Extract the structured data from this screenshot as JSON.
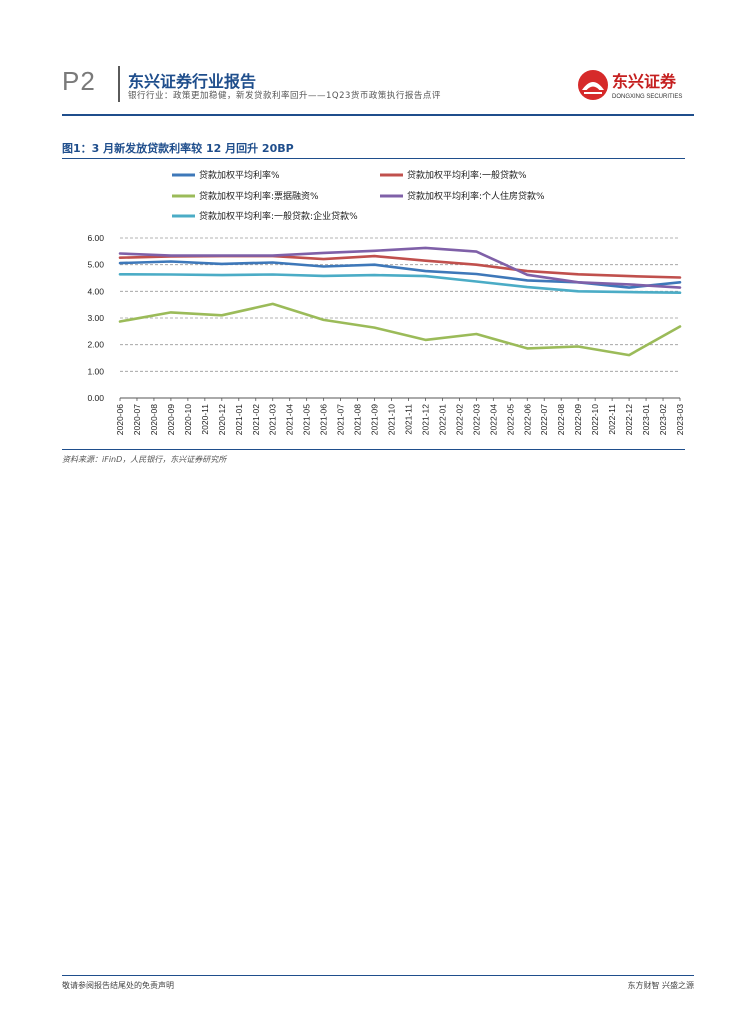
{
  "header": {
    "page_num": "P2",
    "report_title": "东兴证券行业报告",
    "report_subtitle": "银行行业：政策更加稳健，新发贷款利率回升——1Q23货币政策执行报告点评",
    "logo_text": "东兴证券",
    "logo_subtext": "DONGXING SECURITIES"
  },
  "figure": {
    "title": "图1：3 月新发放贷款利率较 12 月回升 20BP",
    "source": "资料来源：iFinD，人民银行，东兴证券研究所"
  },
  "footer": {
    "left": "敬请参阅报告结尾处的免责声明",
    "right": "东方财智 兴盛之源"
  },
  "chart_data": {
    "type": "line",
    "title": "3 月新发放贷款利率较 12 月回升 20BP",
    "xlabel": "",
    "ylabel": "",
    "ylim": [
      0,
      6
    ],
    "yticks": [
      "0.00",
      "1.00",
      "2.00",
      "3.00",
      "4.00",
      "5.00",
      "6.00"
    ],
    "grid": true,
    "legend_position": "top",
    "categories": [
      "2020-06",
      "2020-07",
      "2020-08",
      "2020-09",
      "2020-10",
      "2020-11",
      "2020-12",
      "2021-01",
      "2021-02",
      "2021-03",
      "2021-04",
      "2021-05",
      "2021-06",
      "2021-07",
      "2021-08",
      "2021-09",
      "2021-10",
      "2021-11",
      "2021-12",
      "2022-01",
      "2022-02",
      "2022-03",
      "2022-04",
      "2022-05",
      "2022-06",
      "2022-07",
      "2022-08",
      "2022-09",
      "2022-10",
      "2022-11",
      "2022-12",
      "2023-01",
      "2023-02",
      "2023-03"
    ],
    "series": [
      {
        "name": "贷款加权平均利率%",
        "color": "#3e78b9",
        "points": [
          [
            "2020-06",
            5.06
          ],
          [
            "2020-09",
            5.12
          ],
          [
            "2020-12",
            5.03
          ],
          [
            "2021-03",
            5.08
          ],
          [
            "2021-06",
            4.93
          ],
          [
            "2021-09",
            5.0
          ],
          [
            "2021-12",
            4.76
          ],
          [
            "2022-03",
            4.65
          ],
          [
            "2022-06",
            4.41
          ],
          [
            "2022-09",
            4.34
          ],
          [
            "2022-12",
            4.14
          ],
          [
            "2023-03",
            4.34
          ]
        ]
      },
      {
        "name": "贷款加权平均利率:一般贷款%",
        "color": "#c0504d",
        "points": [
          [
            "2020-06",
            5.26
          ],
          [
            "2020-09",
            5.31
          ],
          [
            "2020-12",
            5.32
          ],
          [
            "2021-03",
            5.32
          ],
          [
            "2021-06",
            5.21
          ],
          [
            "2021-09",
            5.32
          ],
          [
            "2021-12",
            5.15
          ],
          [
            "2022-03",
            5.0
          ],
          [
            "2022-06",
            4.76
          ],
          [
            "2022-09",
            4.64
          ],
          [
            "2022-12",
            4.57
          ],
          [
            "2023-03",
            4.52
          ]
        ]
      },
      {
        "name": "贷款加权平均利率:票据融资%",
        "color": "#9bbb59",
        "points": [
          [
            "2020-06",
            2.87
          ],
          [
            "2020-09",
            3.21
          ],
          [
            "2020-12",
            3.1
          ],
          [
            "2021-03",
            3.53
          ],
          [
            "2021-06",
            2.93
          ],
          [
            "2021-09",
            2.64
          ],
          [
            "2021-12",
            2.18
          ],
          [
            "2022-03",
            2.4
          ],
          [
            "2022-06",
            1.86
          ],
          [
            "2022-09",
            1.93
          ],
          [
            "2022-12",
            1.61
          ],
          [
            "2023-03",
            2.68
          ]
        ]
      },
      {
        "name": "贷款加权平均利率:个人住房贷款%",
        "color": "#7f60a8",
        "points": [
          [
            "2020-06",
            5.42
          ],
          [
            "2020-09",
            5.34
          ],
          [
            "2020-12",
            5.34
          ],
          [
            "2021-03",
            5.34
          ],
          [
            "2021-06",
            5.44
          ],
          [
            "2021-09",
            5.52
          ],
          [
            "2021-12",
            5.63
          ],
          [
            "2022-03",
            5.49
          ],
          [
            "2022-06",
            4.62
          ],
          [
            "2022-09",
            4.34
          ],
          [
            "2022-12",
            4.26
          ],
          [
            "2023-03",
            4.14
          ]
        ]
      },
      {
        "name": "贷款加权平均利率:一般贷款:企业贷款%",
        "color": "#4bacc6",
        "points": [
          [
            "2020-06",
            4.64
          ],
          [
            "2020-09",
            4.63
          ],
          [
            "2020-12",
            4.61
          ],
          [
            "2021-03",
            4.63
          ],
          [
            "2021-06",
            4.58
          ],
          [
            "2021-09",
            4.61
          ],
          [
            "2021-12",
            4.57
          ],
          [
            "2022-03",
            4.37
          ],
          [
            "2022-06",
            4.16
          ],
          [
            "2022-09",
            4.0
          ],
          [
            "2022-12",
            3.97
          ],
          [
            "2023-03",
            3.95
          ]
        ]
      }
    ]
  }
}
